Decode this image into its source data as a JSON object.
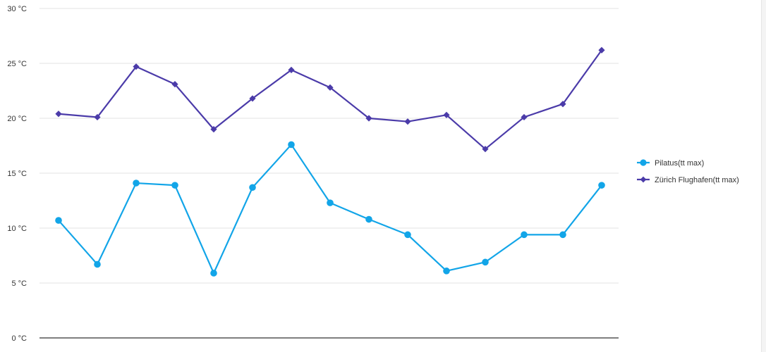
{
  "chart_data": {
    "type": "line",
    "title": "",
    "xlabel": "",
    "ylabel": "",
    "ylim": [
      0,
      30
    ],
    "y_ticks": [
      0,
      5,
      10,
      15,
      20,
      25,
      30
    ],
    "y_unit": "°C",
    "y_tick_labels": [
      "0 °C",
      "5 °C",
      "10 °C",
      "15 °C",
      "20 °C",
      "25 °C",
      "30 °C"
    ],
    "grid": true,
    "legend_position": "right",
    "x": [
      1,
      2,
      3,
      4,
      5,
      6,
      7,
      8,
      9,
      10,
      11,
      12,
      13,
      14,
      15
    ],
    "series": [
      {
        "name": "Pilatus(tt max)",
        "color": "#12a5e8",
        "marker": "circle",
        "values": [
          10.7,
          6.7,
          14.1,
          13.9,
          5.9,
          13.7,
          17.6,
          12.3,
          10.8,
          9.4,
          6.1,
          6.9,
          9.4,
          9.4,
          13.9
        ]
      },
      {
        "name": "Zürich Flughafen(tt max)",
        "color": "#4b3ba9",
        "marker": "diamond",
        "values": [
          20.4,
          20.1,
          24.7,
          23.1,
          19.0,
          21.8,
          24.4,
          22.8,
          20.0,
          19.7,
          20.3,
          17.2,
          20.1,
          21.3,
          26.2
        ]
      }
    ]
  }
}
